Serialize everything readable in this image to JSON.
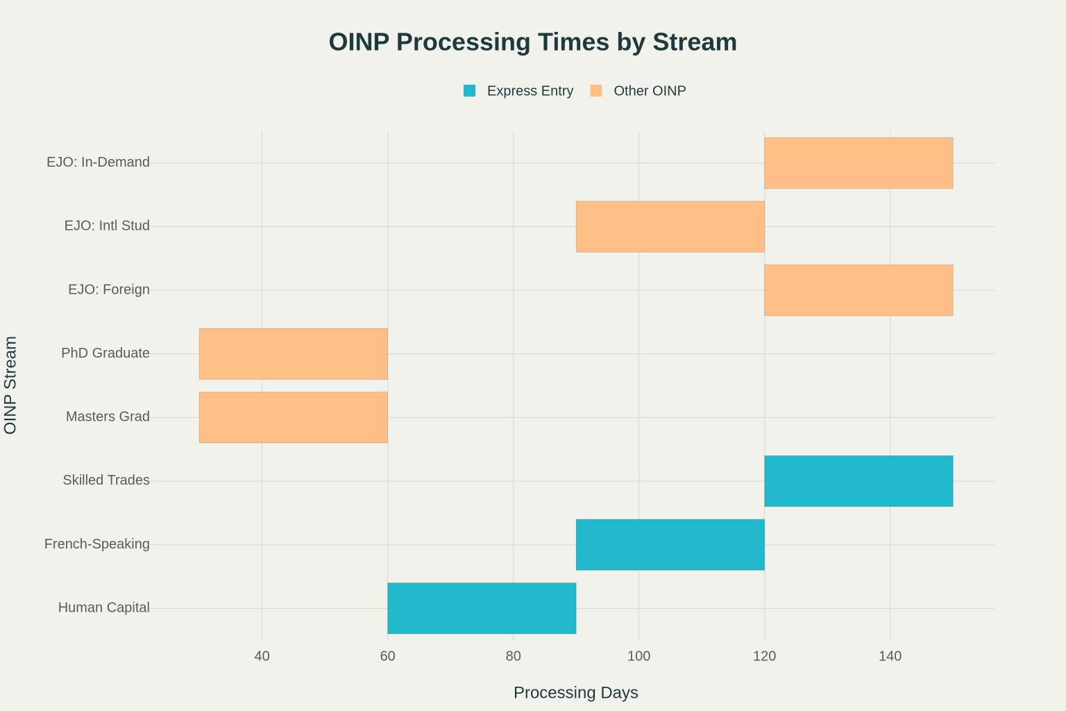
{
  "chart_data": {
    "type": "range-bar",
    "orientation": "horizontal",
    "title": "OINP Processing Times by Stream",
    "xlabel": "Processing Days",
    "ylabel": "OINP Stream",
    "categories": [
      "Human Capital",
      "French-Speaking",
      "Skilled Trades",
      "Masters Grad",
      "PhD Graduate",
      "EJO: Foreign",
      "EJO: Intl Stud",
      "EJO: In-Demand"
    ],
    "series": [
      {
        "name": "Express Entry",
        "color": "#21b8cc",
        "values": [
          [
            60,
            90
          ],
          [
            90,
            120
          ],
          [
            120,
            150
          ],
          null,
          null,
          null,
          null,
          null
        ]
      },
      {
        "name": "Other OINP",
        "color": "#ffbf86",
        "values": [
          null,
          null,
          null,
          [
            30,
            60
          ],
          [
            30,
            60
          ],
          [
            120,
            150
          ],
          [
            90,
            120
          ],
          [
            120,
            150
          ]
        ]
      }
    ],
    "xlim": [
      22.8,
      156.6
    ],
    "xticks": [
      40,
      60,
      80,
      100,
      120,
      140
    ],
    "grid": true,
    "legend": "top"
  }
}
